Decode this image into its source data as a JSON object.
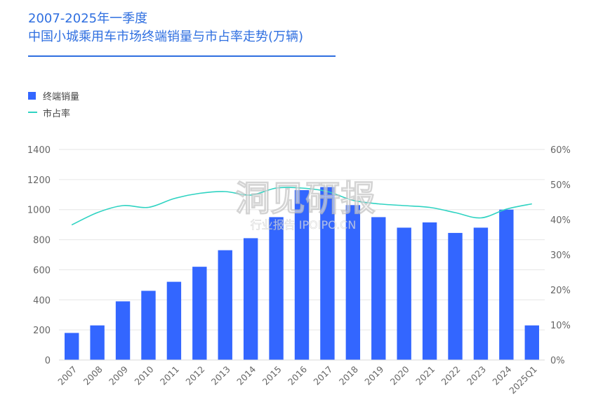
{
  "header": {
    "title_line1": "2007-2025年一季度",
    "title_line2": "中国小城乘用车市场终端销量与市占率走势(万辆)"
  },
  "legend": {
    "bar_label": "终端销量",
    "line_label": "市占率"
  },
  "watermark": {
    "main": "洞见研报",
    "sub": "行业报告 IPOIPO.CN"
  },
  "colors": {
    "bar": "#3366ff",
    "line": "#2fd3c2",
    "title": "#2f6fe0",
    "grid": "#e6e6e6"
  },
  "chart_data": {
    "type": "bar",
    "title": "2007-2025年一季度 中国小城乘用车市场终端销量与市占率走势(万辆)",
    "categories": [
      "2007",
      "2008",
      "2009",
      "2010",
      "2011",
      "2012",
      "2013",
      "2014",
      "2015",
      "2016",
      "2017",
      "2018",
      "2019",
      "2020",
      "2021",
      "2022",
      "2023",
      "2024",
      "2025Q1"
    ],
    "series": [
      {
        "name": "终端销量",
        "type": "bar",
        "axis": "left",
        "values": [
          180,
          230,
          390,
          460,
          520,
          620,
          730,
          810,
          950,
          1130,
          1150,
          1030,
          950,
          880,
          915,
          845,
          880,
          1000,
          230
        ]
      },
      {
        "name": "市占率",
        "type": "line",
        "axis": "right",
        "values": [
          0.385,
          0.42,
          0.44,
          0.435,
          0.46,
          0.475,
          0.48,
          0.47,
          0.49,
          0.49,
          0.48,
          0.455,
          0.445,
          0.44,
          0.435,
          0.42,
          0.405,
          0.43,
          0.445
        ]
      }
    ],
    "y_left": {
      "min": 0,
      "max": 1400,
      "ticks": [
        0,
        200,
        400,
        600,
        800,
        1000,
        1200,
        1400
      ],
      "tick_labels": [
        "0",
        "200",
        "400",
        "600",
        "800",
        "1000",
        "1200",
        "1400"
      ]
    },
    "y_right": {
      "min": 0,
      "max": 0.6,
      "ticks": [
        0,
        0.1,
        0.2,
        0.3,
        0.4,
        0.5,
        0.6
      ],
      "tick_labels": [
        "0%",
        "10%",
        "20%",
        "30%",
        "40%",
        "50%",
        "60%"
      ]
    },
    "grid": true,
    "legend_position": "top-left"
  }
}
